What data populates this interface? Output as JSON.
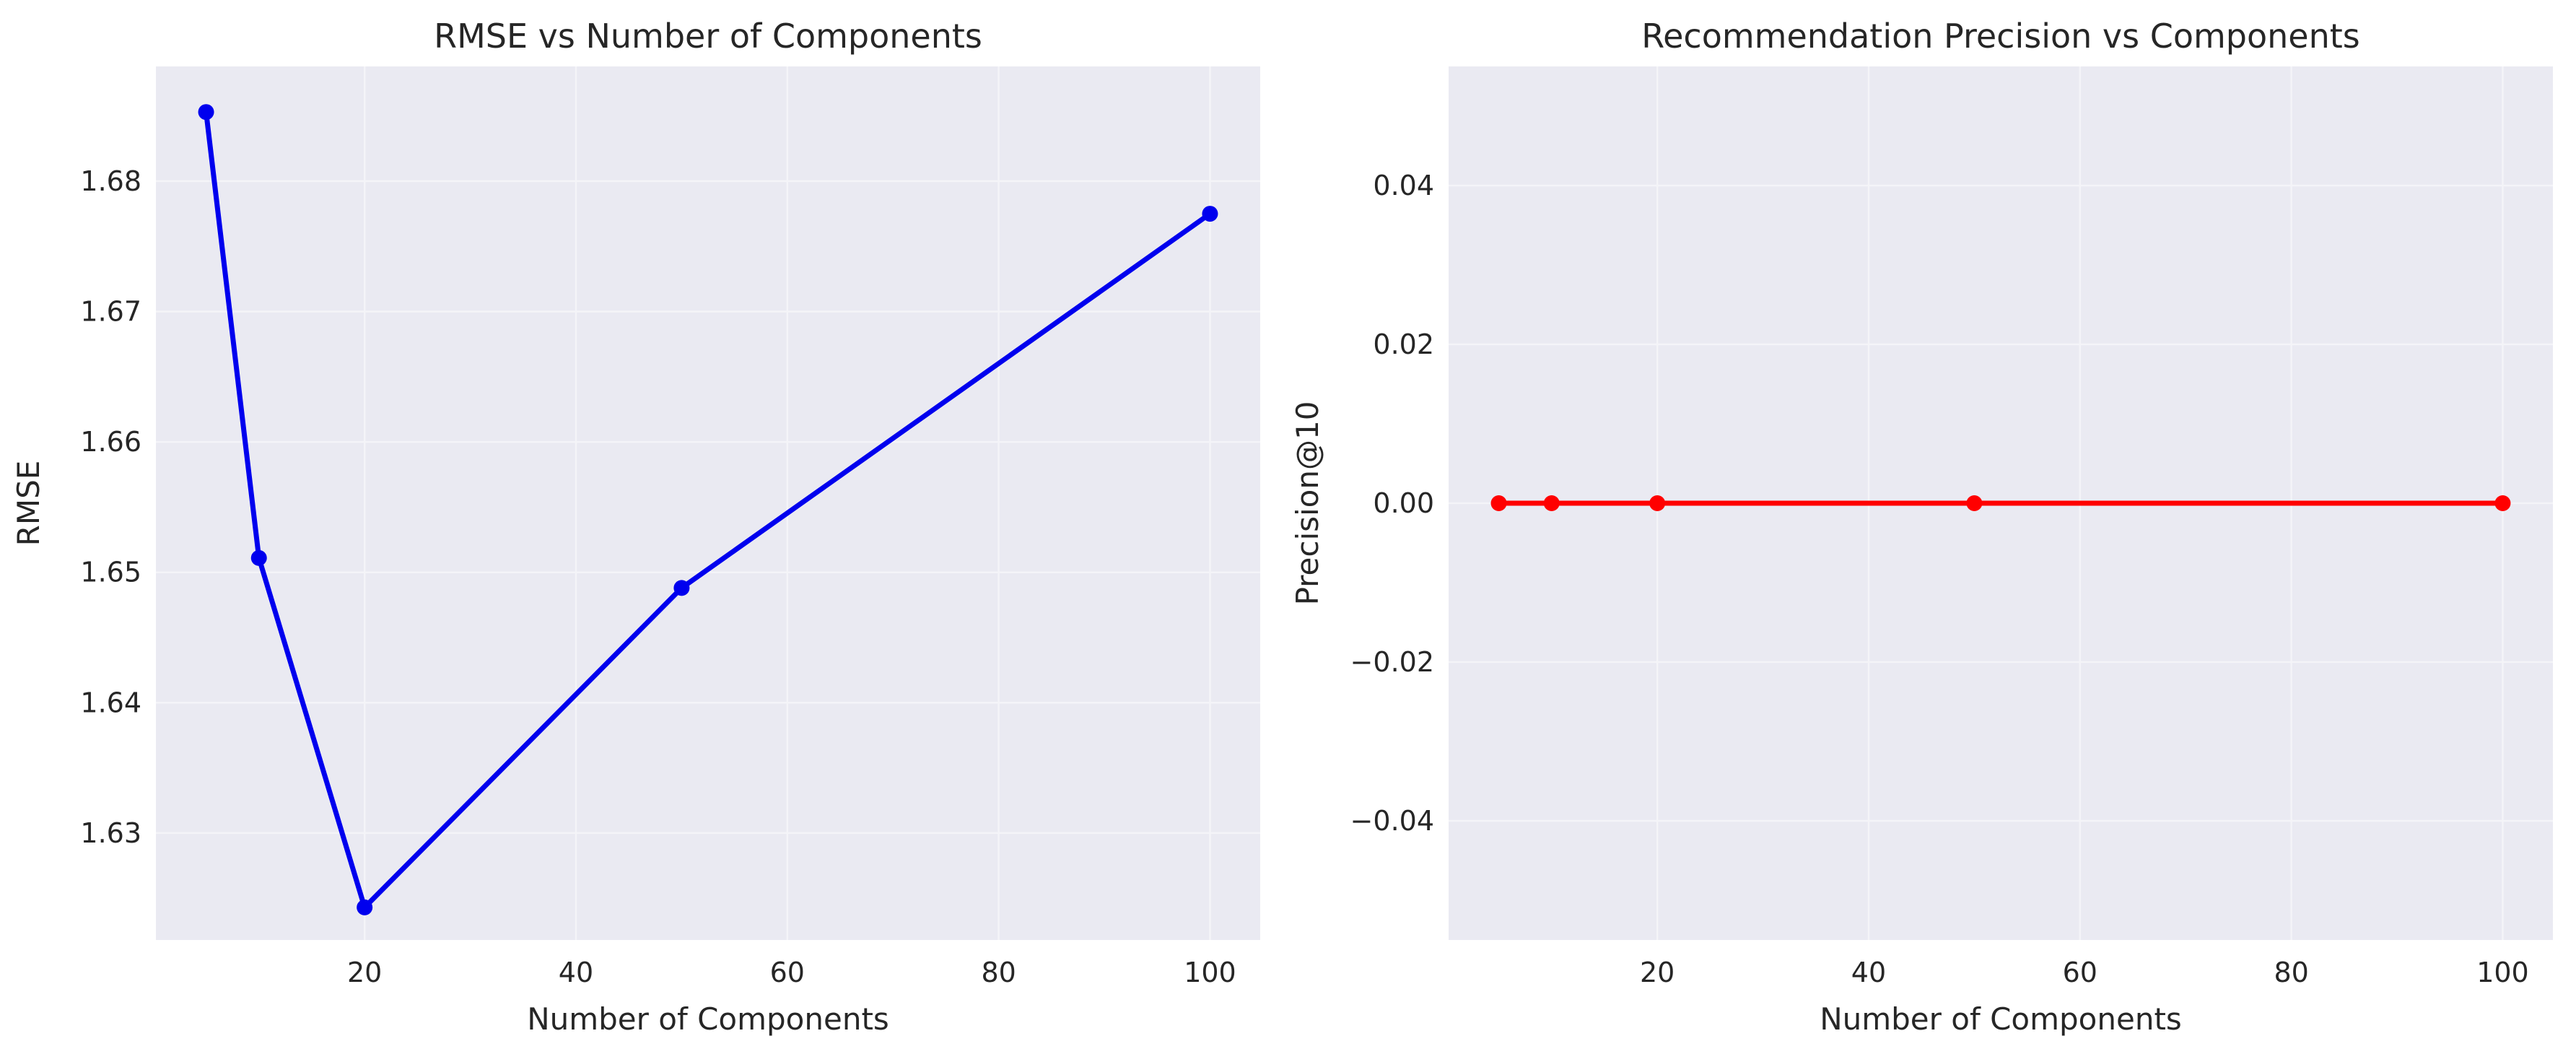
{
  "colors": {
    "figure_bg": "#ffffff",
    "axes_bg": "#eaeaf2",
    "grid": "#f4f4f8",
    "text": "#262626"
  },
  "chart_data": [
    {
      "type": "line",
      "title": "RMSE vs Number of Components",
      "xlabel": "Number of Components",
      "ylabel": "RMSE",
      "grid": true,
      "xlim": [
        0.25,
        104.75
      ],
      "ylim": [
        1.6218,
        1.6888
      ],
      "xticks": [
        20,
        40,
        60,
        80,
        100
      ],
      "yticks": [
        1.63,
        1.64,
        1.65,
        1.66,
        1.67,
        1.68
      ],
      "xtick_labels": [
        "20",
        "40",
        "60",
        "80",
        "100"
      ],
      "ytick_labels": [
        "1.63",
        "1.64",
        "1.65",
        "1.66",
        "1.67",
        "1.68"
      ],
      "series": [
        {
          "color": "#0000ee",
          "marker": "circle",
          "x": [
            5,
            10,
            20,
            50,
            100
          ],
          "y": [
            1.6853,
            1.6511,
            1.6243,
            1.6488,
            1.6775
          ]
        }
      ]
    },
    {
      "type": "line",
      "title": "Recommendation Precision vs Components",
      "xlabel": "Number of Components",
      "ylabel": "Precision@10",
      "grid": true,
      "xlim": [
        0.25,
        104.75
      ],
      "ylim": [
        -0.055,
        0.055
      ],
      "xticks": [
        20,
        40,
        60,
        80,
        100
      ],
      "yticks": [
        -0.04,
        -0.02,
        0.0,
        0.02,
        0.04
      ],
      "xtick_labels": [
        "20",
        "40",
        "60",
        "80",
        "100"
      ],
      "ytick_labels": [
        "−0.04",
        "−0.02",
        "0.00",
        "0.02",
        "0.04"
      ],
      "series": [
        {
          "color": "#ff0000",
          "marker": "circle",
          "x": [
            5,
            10,
            20,
            50,
            100
          ],
          "y": [
            0,
            0,
            0,
            0,
            0
          ]
        }
      ]
    }
  ]
}
